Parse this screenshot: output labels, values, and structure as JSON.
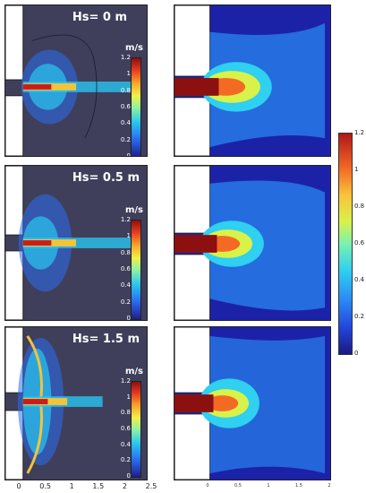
{
  "panels": [
    {
      "hs_label": "Hs= 0 m",
      "unit": "m/s"
    },
    {
      "hs_label": "Hs= 0.5 m",
      "unit": "m/s"
    },
    {
      "hs_label": "Hs= 1.5 m",
      "unit": "m/s"
    }
  ],
  "small_colorbar_ticks": [
    "1.2",
    "1",
    "0.8",
    "0.6",
    "0.4",
    "0.2",
    "0"
  ],
  "big_colorbar_ticks": [
    "1.2",
    "1",
    "0.8",
    "0.6",
    "0.4",
    "0.2",
    "0"
  ],
  "left_x_axis_ticks": [
    "0",
    "0.5",
    "1",
    "1.5",
    "2",
    "2.5"
  ],
  "right_x_axis_ticks": [
    "0",
    "0.5",
    "1",
    "1.5",
    "2"
  ],
  "colors": {
    "left_background": "#3f3f5c",
    "right_background": "#1c22a8"
  }
}
